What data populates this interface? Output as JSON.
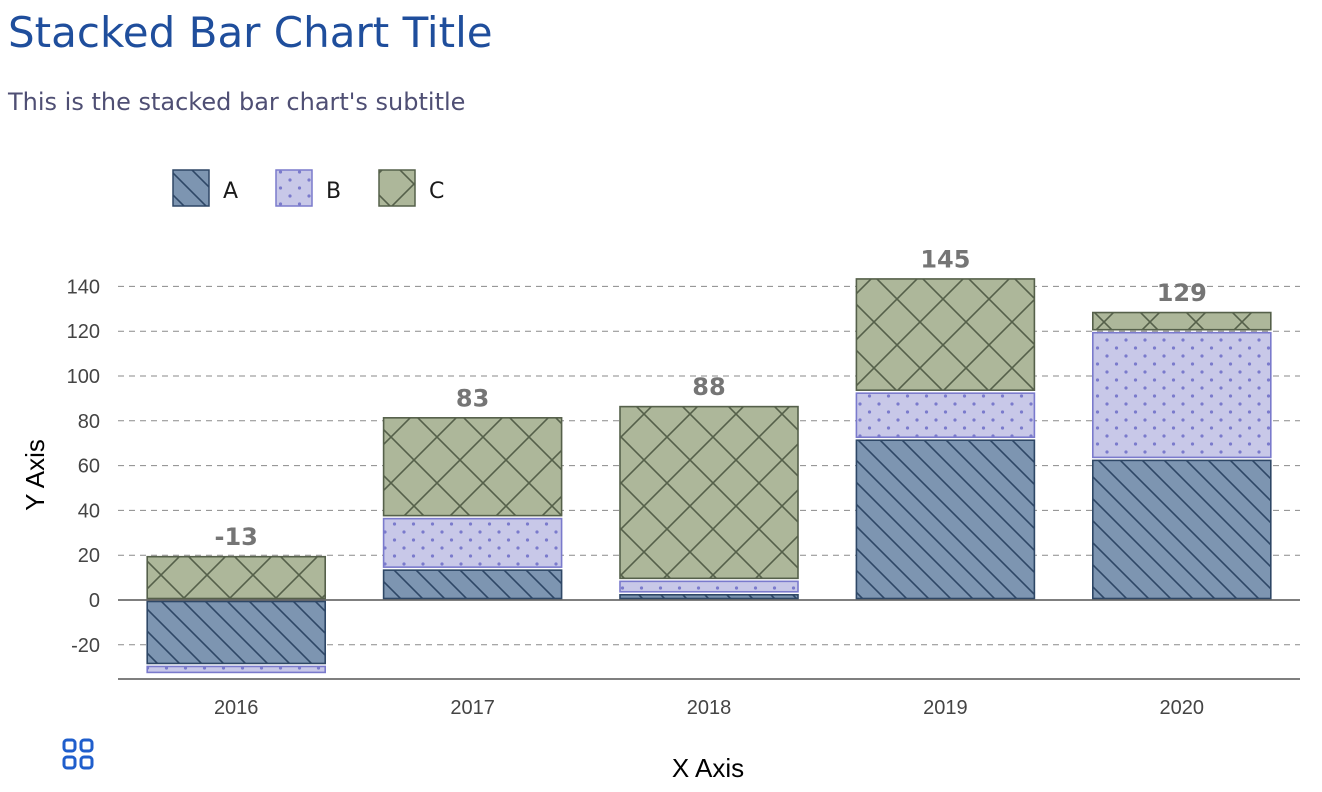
{
  "header": {
    "title": "Stacked Bar Chart Title",
    "subtitle": "This is the stacked bar chart's subtitle"
  },
  "toolbar": {
    "grid_icon": "grid-icon",
    "accent_color": "#1f5ecc"
  },
  "chart_data": {
    "type": "bar",
    "stacked": true,
    "title": "Stacked Bar Chart Title",
    "subtitle": "This is the stacked bar chart's subtitle",
    "xlabel": "X Axis",
    "ylabel": "Y Axis",
    "categories": [
      "2016",
      "2017",
      "2018",
      "2019",
      "2020"
    ],
    "ylim": [
      -35,
      145
    ],
    "yticks": [
      -20,
      0,
      20,
      40,
      60,
      80,
      100,
      120,
      140
    ],
    "ytick_labels": [
      "-20",
      "0",
      "20",
      "40",
      "60",
      "80",
      "100",
      "120",
      "140"
    ],
    "grid": true,
    "legend": "top-left",
    "series": [
      {
        "name": "A",
        "values": [
          -29,
          14,
          3,
          72,
          63
        ],
        "color": "#7d95b1",
        "pattern": "diagonal-lines",
        "pattern_color": "#2e4766"
      },
      {
        "name": "B",
        "values": [
          -4,
          23,
          6,
          21,
          57
        ],
        "color": "#c8c8e8",
        "pattern": "dots",
        "pattern_color": "#7a7acc"
      },
      {
        "name": "C",
        "values": [
          20,
          45,
          78,
          51,
          9
        ],
        "color": "#adb79a",
        "pattern": "crosshatch",
        "pattern_color": "#55604a"
      }
    ],
    "totals": [
      -13,
      83,
      88,
      145,
      129
    ],
    "total_labels": [
      "-13",
      "83",
      "88",
      "145",
      "129"
    ]
  }
}
